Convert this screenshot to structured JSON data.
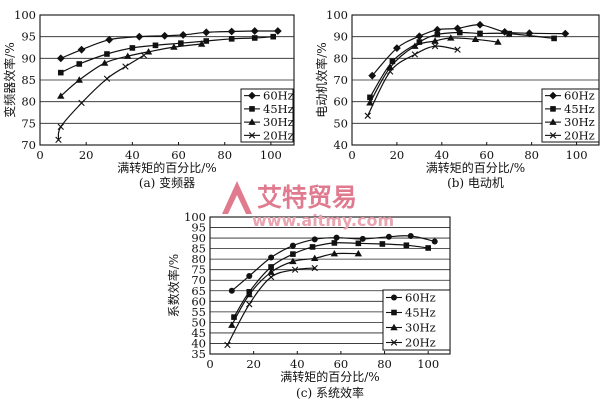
{
  "watermark": {
    "brand": "艾特贸易",
    "url": "www.aitmy.com"
  },
  "chart_data": [
    {
      "type": "line",
      "caption": "(a) 变频器",
      "xlabel": "满转矩的百分比/%",
      "ylabel": "变频器效率/%",
      "xlim": [
        0,
        110
      ],
      "ylim": [
        70,
        100
      ],
      "xticks": [
        0,
        20,
        40,
        60,
        80,
        100
      ],
      "yticks": [
        70,
        75,
        80,
        85,
        90,
        95,
        100
      ],
      "grid": "horizontal",
      "legend": "lower-right",
      "series": [
        {
          "name": "60Hz",
          "marker": "diamond",
          "x": [
            9,
            18,
            30,
            43,
            54,
            62,
            72,
            83,
            93,
            103
          ],
          "y": [
            90,
            92,
            94.3,
            95,
            95.2,
            95.4,
            96,
            96.2,
            96.3,
            96.3
          ]
        },
        {
          "name": "45Hz",
          "marker": "square",
          "x": [
            9,
            17,
            29,
            40,
            50,
            61,
            72,
            83,
            93,
            101
          ],
          "y": [
            86.7,
            88.7,
            91,
            92.4,
            93,
            93.5,
            94,
            94.5,
            94.7,
            95
          ]
        },
        {
          "name": "30Hz",
          "marker": "triangle",
          "x": [
            9,
            17,
            28,
            38,
            47,
            58,
            70
          ],
          "y": [
            81.3,
            85,
            88.9,
            90.5,
            91.5,
            92.6,
            93.3
          ]
        },
        {
          "name": "20Hz",
          "marker": "x",
          "x": [
            8,
            9,
            18,
            29,
            37,
            45
          ],
          "y": [
            71.2,
            74.2,
            79.7,
            85.3,
            88.1,
            90.7
          ]
        }
      ]
    },
    {
      "type": "line",
      "caption": "(b) 电动机",
      "xlabel": "满转矩的百分比/%",
      "ylabel": "电动机效率/%",
      "xlim": [
        0,
        110
      ],
      "ylim": [
        40,
        100
      ],
      "xticks": [
        0,
        20,
        40,
        60,
        80,
        100
      ],
      "yticks": [
        40,
        50,
        60,
        70,
        80,
        90,
        100
      ],
      "grid": "horizontal",
      "legend": "lower-right",
      "series": [
        {
          "name": "60Hz",
          "marker": "diamond",
          "x": [
            9,
            20,
            30,
            38,
            47,
            57,
            68,
            79,
            95
          ],
          "y": [
            72,
            84.7,
            90.2,
            93.2,
            93.8,
            95.5,
            92.2,
            91.6,
            91.4
          ]
        },
        {
          "name": "45Hz",
          "marker": "square",
          "x": [
            8,
            18,
            30,
            38,
            48,
            57,
            70,
            90
          ],
          "y": [
            62,
            78.6,
            87.5,
            91,
            91.9,
            91.5,
            91.4,
            89.2
          ]
        },
        {
          "name": "30Hz",
          "marker": "triangle",
          "x": [
            8,
            17,
            28,
            37,
            44,
            55,
            65
          ],
          "y": [
            59.5,
            75.8,
            85.6,
            88,
            89.4,
            88.8,
            87.5
          ]
        },
        {
          "name": "20Hz",
          "marker": "x",
          "x": [
            7,
            17,
            28,
            37,
            47
          ],
          "y": [
            53.5,
            73.9,
            81.8,
            85.6,
            84
          ]
        }
      ]
    },
    {
      "type": "line",
      "caption": "(c) 系统效率",
      "xlabel": "满转矩的百分比/%",
      "ylabel": "系数效率/%",
      "xlim": [
        0,
        110
      ],
      "ylim": [
        35,
        100
      ],
      "xticks": [
        0,
        20,
        40,
        60,
        80,
        100
      ],
      "yticks": [
        35,
        40,
        45,
        50,
        55,
        60,
        65,
        70,
        75,
        80,
        85,
        90,
        95,
        100
      ],
      "grid": "horizontal",
      "legend": "lower-right",
      "series": [
        {
          "name": "60Hz",
          "marker": "circle",
          "x": [
            10,
            18,
            28,
            38,
            48,
            58,
            70,
            82,
            92,
            103
          ],
          "y": [
            65,
            72,
            80.8,
            86.4,
            89.4,
            90.2,
            89.6,
            90.6,
            91,
            88.4
          ]
        },
        {
          "name": "45Hz",
          "marker": "square",
          "x": [
            11,
            18,
            28,
            38,
            47,
            57,
            68,
            79,
            90,
            100
          ],
          "y": [
            52.5,
            64.5,
            76.3,
            82.4,
            85.8,
            87.7,
            87.5,
            87.2,
            86.6,
            85.3
          ]
        },
        {
          "name": "30Hz",
          "marker": "triangle",
          "x": [
            10,
            18,
            28,
            38,
            48,
            57,
            68
          ],
          "y": [
            48.7,
            63.2,
            73.8,
            78.9,
            80.4,
            82.6,
            82.6
          ]
        },
        {
          "name": "20Hz",
          "marker": "x",
          "x": [
            8,
            18,
            28,
            39,
            48
          ],
          "y": [
            39.3,
            58.6,
            71.5,
            75,
            75.8
          ]
        }
      ]
    }
  ]
}
